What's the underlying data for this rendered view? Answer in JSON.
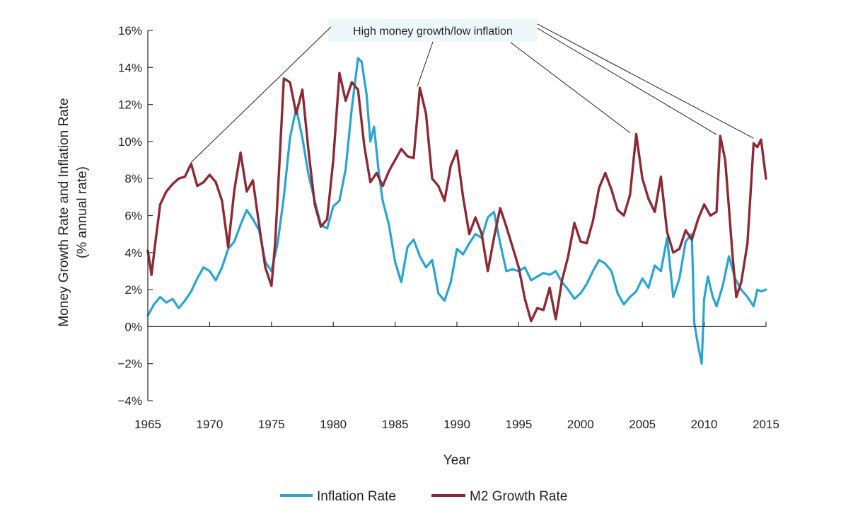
{
  "chart_data": {
    "type": "line",
    "annotation": "High money growth/low inflation",
    "xlabel": "Year",
    "ylabel": [
      "Money Growth Rate and Inflation Rate",
      "(% annual rate)"
    ],
    "xlim": [
      1965,
      2015
    ],
    "ylim": [
      -4,
      16
    ],
    "x_ticks": [
      1965,
      1970,
      1975,
      1980,
      1985,
      1990,
      1995,
      2000,
      2005,
      2010,
      2015
    ],
    "x_tick_labels": [
      "1965",
      "1970",
      "1975",
      "1980",
      "1985",
      "1990",
      "1995",
      "2000",
      "2005",
      "2010",
      "2015"
    ],
    "y_ticks": [
      -4,
      -2,
      0,
      2,
      4,
      6,
      8,
      10,
      12,
      14,
      16
    ],
    "y_tick_labels": [
      "−4%",
      "−2%",
      "0%",
      "2%",
      "4%",
      "6%",
      "8%",
      "10%",
      "12%",
      "14%",
      "16%"
    ],
    "grid": false,
    "legend_position": "bottom",
    "annotation_targets": [
      [
        1968.5,
        8.8
      ],
      [
        1986.8,
        12.9
      ],
      [
        2004,
        10.4
      ],
      [
        2011,
        10.3
      ],
      [
        2014,
        10.1
      ]
    ],
    "series": [
      {
        "name": "Inflation Rate",
        "color": "#2aa4cf",
        "points": [
          [
            1965,
            0.6
          ],
          [
            1965.5,
            1.2
          ],
          [
            1966,
            1.6
          ],
          [
            1966.5,
            1.3
          ],
          [
            1967,
            1.5
          ],
          [
            1967.5,
            1.0
          ],
          [
            1968,
            1.4
          ],
          [
            1968.5,
            1.9
          ],
          [
            1969,
            2.6
          ],
          [
            1969.5,
            3.2
          ],
          [
            1970,
            3.0
          ],
          [
            1970.5,
            2.5
          ],
          [
            1971,
            3.2
          ],
          [
            1971.5,
            4.2
          ],
          [
            1972,
            4.6
          ],
          [
            1972.5,
            5.5
          ],
          [
            1973,
            6.3
          ],
          [
            1973.5,
            5.8
          ],
          [
            1974,
            5.2
          ],
          [
            1974.5,
            3.5
          ],
          [
            1975,
            3.0
          ],
          [
            1975.5,
            4.5
          ],
          [
            1976,
            7.0
          ],
          [
            1976.5,
            10.2
          ],
          [
            1977,
            11.8
          ],
          [
            1977.5,
            10.2
          ],
          [
            1978,
            8.2
          ],
          [
            1978.5,
            6.8
          ],
          [
            1979,
            5.5
          ],
          [
            1979.5,
            5.3
          ],
          [
            1980,
            6.5
          ],
          [
            1980.5,
            6.8
          ],
          [
            1981,
            8.5
          ],
          [
            1981.5,
            11.8
          ],
          [
            1982,
            14.5
          ],
          [
            1982.3,
            14.3
          ],
          [
            1982.7,
            12.5
          ],
          [
            1983,
            10.0
          ],
          [
            1983.3,
            10.8
          ],
          [
            1983.7,
            8.2
          ],
          [
            1984,
            6.8
          ],
          [
            1984.5,
            5.5
          ],
          [
            1985,
            3.5
          ],
          [
            1985.5,
            2.4
          ],
          [
            1986,
            4.3
          ],
          [
            1986.5,
            4.7
          ],
          [
            1987,
            3.8
          ],
          [
            1987.5,
            3.2
          ],
          [
            1988,
            3.6
          ],
          [
            1988.5,
            1.8
          ],
          [
            1989,
            1.4
          ],
          [
            1989.5,
            2.4
          ],
          [
            1990,
            4.2
          ],
          [
            1990.5,
            3.9
          ],
          [
            1991,
            4.5
          ],
          [
            1991.5,
            5.0
          ],
          [
            1992,
            4.8
          ],
          [
            1992.5,
            5.9
          ],
          [
            1993,
            6.2
          ],
          [
            1993.5,
            4.5
          ],
          [
            1994,
            3.0
          ],
          [
            1994.5,
            3.1
          ],
          [
            1995,
            3.0
          ],
          [
            1995.5,
            3.2
          ],
          [
            1996,
            2.5
          ],
          [
            1996.5,
            2.7
          ],
          [
            1997,
            2.9
          ],
          [
            1997.5,
            2.8
          ],
          [
            1998,
            3.0
          ],
          [
            1998.5,
            2.4
          ],
          [
            1999,
            2.0
          ],
          [
            1999.5,
            1.5
          ],
          [
            2000,
            1.8
          ],
          [
            2000.5,
            2.3
          ],
          [
            2001,
            3.0
          ],
          [
            2001.5,
            3.6
          ],
          [
            2002,
            3.4
          ],
          [
            2002.5,
            3.0
          ],
          [
            2003,
            1.8
          ],
          [
            2003.5,
            1.2
          ],
          [
            2004,
            1.6
          ],
          [
            2004.5,
            1.9
          ],
          [
            2005,
            2.6
          ],
          [
            2005.5,
            2.1
          ],
          [
            2006,
            3.3
          ],
          [
            2006.5,
            3.0
          ],
          [
            2007,
            4.8
          ],
          [
            2007.5,
            1.6
          ],
          [
            2008,
            2.6
          ],
          [
            2008.5,
            4.6
          ],
          [
            2009,
            5.0
          ],
          [
            2009.2,
            0.2
          ],
          [
            2009.5,
            -1.0
          ],
          [
            2009.8,
            -2.0
          ],
          [
            2010,
            1.5
          ],
          [
            2010.3,
            2.7
          ],
          [
            2010.7,
            1.6
          ],
          [
            2011,
            1.1
          ],
          [
            2011.5,
            2.2
          ],
          [
            2012,
            3.8
          ],
          [
            2012.5,
            2.6
          ],
          [
            2013,
            2.0
          ],
          [
            2013.5,
            1.6
          ],
          [
            2014,
            1.1
          ],
          [
            2014.3,
            2.0
          ],
          [
            2014.6,
            1.9
          ],
          [
            2015,
            2.0
          ]
        ]
      },
      {
        "name": "M2 Growth Rate",
        "color": "#8b2a35",
        "points": [
          [
            1965,
            4.1
          ],
          [
            1965.3,
            2.8
          ],
          [
            1965.6,
            4.5
          ],
          [
            1966,
            6.6
          ],
          [
            1966.5,
            7.3
          ],
          [
            1967,
            7.7
          ],
          [
            1967.5,
            8.0
          ],
          [
            1968,
            8.1
          ],
          [
            1968.5,
            8.8
          ],
          [
            1969,
            7.6
          ],
          [
            1969.5,
            7.8
          ],
          [
            1970,
            8.2
          ],
          [
            1970.5,
            7.8
          ],
          [
            1971,
            6.8
          ],
          [
            1971.5,
            4.3
          ],
          [
            1972,
            7.4
          ],
          [
            1972.5,
            9.4
          ],
          [
            1973,
            7.3
          ],
          [
            1973.5,
            7.9
          ],
          [
            1974,
            5.5
          ],
          [
            1974.5,
            3.2
          ],
          [
            1975,
            2.2
          ],
          [
            1975.3,
            4.5
          ],
          [
            1975.7,
            9.5
          ],
          [
            1976,
            13.4
          ],
          [
            1976.5,
            13.2
          ],
          [
            1977,
            11.5
          ],
          [
            1977.5,
            12.8
          ],
          [
            1978,
            9.5
          ],
          [
            1978.5,
            6.6
          ],
          [
            1979,
            5.4
          ],
          [
            1979.5,
            5.8
          ],
          [
            1980,
            9.0
          ],
          [
            1980.5,
            13.7
          ],
          [
            1981,
            12.2
          ],
          [
            1981.5,
            13.2
          ],
          [
            1982,
            12.8
          ],
          [
            1982.5,
            9.8
          ],
          [
            1983,
            7.8
          ],
          [
            1983.5,
            8.3
          ],
          [
            1984,
            7.6
          ],
          [
            1984.5,
            8.4
          ],
          [
            1985,
            9.0
          ],
          [
            1985.5,
            9.6
          ],
          [
            1986,
            9.2
          ],
          [
            1986.5,
            9.1
          ],
          [
            1987,
            12.9
          ],
          [
            1987.5,
            11.5
          ],
          [
            1988,
            8.0
          ],
          [
            1988.5,
            7.6
          ],
          [
            1989,
            6.8
          ],
          [
            1989.5,
            8.7
          ],
          [
            1990,
            9.5
          ],
          [
            1990.5,
            7.0
          ],
          [
            1991,
            5.0
          ],
          [
            1991.5,
            5.9
          ],
          [
            1992,
            5.0
          ],
          [
            1992.5,
            3.0
          ],
          [
            1993,
            4.8
          ],
          [
            1993.5,
            6.4
          ],
          [
            1994,
            5.4
          ],
          [
            1994.5,
            4.3
          ],
          [
            1995,
            3.2
          ],
          [
            1995.5,
            1.5
          ],
          [
            1996,
            0.3
          ],
          [
            1996.5,
            1.0
          ],
          [
            1997,
            0.9
          ],
          [
            1997.5,
            2.1
          ],
          [
            1998,
            0.4
          ],
          [
            1998.5,
            2.5
          ],
          [
            1999,
            3.8
          ],
          [
            1999.5,
            5.6
          ],
          [
            2000,
            4.6
          ],
          [
            2000.5,
            4.5
          ],
          [
            2001,
            5.7
          ],
          [
            2001.5,
            7.5
          ],
          [
            2002,
            8.3
          ],
          [
            2002.5,
            7.4
          ],
          [
            2003,
            6.3
          ],
          [
            2003.5,
            6.0
          ],
          [
            2004,
            7.1
          ],
          [
            2004.5,
            10.4
          ],
          [
            2005,
            8.0
          ],
          [
            2005.5,
            6.9
          ],
          [
            2006,
            6.2
          ],
          [
            2006.5,
            8.1
          ],
          [
            2007,
            5.1
          ],
          [
            2007.5,
            4.0
          ],
          [
            2008,
            4.2
          ],
          [
            2008.5,
            5.2
          ],
          [
            2009,
            4.7
          ],
          [
            2009.5,
            5.8
          ],
          [
            2010,
            6.6
          ],
          [
            2010.5,
            6.0
          ],
          [
            2011,
            6.2
          ],
          [
            2011.3,
            10.3
          ],
          [
            2011.7,
            9.0
          ],
          [
            2012,
            6.4
          ],
          [
            2012.3,
            3.8
          ],
          [
            2012.6,
            1.6
          ],
          [
            2013,
            2.4
          ],
          [
            2013.5,
            4.5
          ],
          [
            2014,
            9.9
          ],
          [
            2014.3,
            9.7
          ],
          [
            2014.6,
            10.1
          ],
          [
            2015,
            8.0
          ]
        ]
      }
    ]
  }
}
